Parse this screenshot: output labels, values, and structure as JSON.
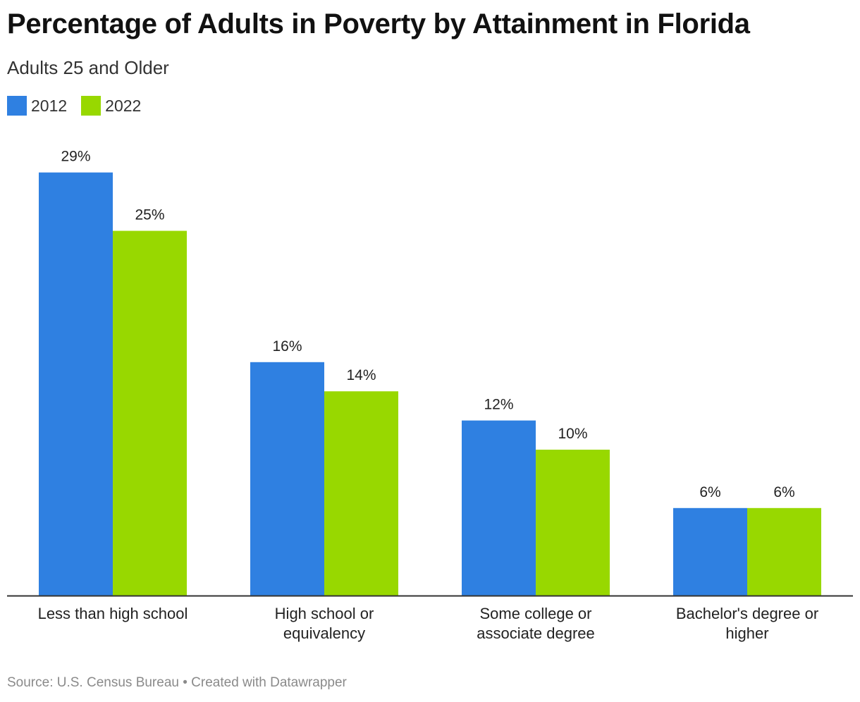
{
  "title": "Percentage of Adults in Poverty by Attainment in Florida",
  "subtitle": "Adults 25 and Older",
  "source": "Source: U.S. Census Bureau • Created with Datawrapper",
  "colors": {
    "2012": "#2f80e1",
    "2022": "#98d800"
  },
  "chart_data": {
    "type": "bar",
    "title": "Percentage of Adults in Poverty by Attainment in Florida",
    "subtitle": "Adults 25 and Older",
    "categories": [
      [
        "Less than high school"
      ],
      [
        "High school or",
        "equivalency"
      ],
      [
        "Some college or",
        "associate degree"
      ],
      [
        "Bachelor's degree or",
        "higher"
      ]
    ],
    "series": [
      {
        "name": "2012",
        "color": "#2f80e1",
        "values": [
          29,
          16,
          12,
          6
        ],
        "labels": [
          "29%",
          "16%",
          "12%",
          "6%"
        ]
      },
      {
        "name": "2022",
        "color": "#98d800",
        "values": [
          25,
          14,
          10,
          6
        ],
        "labels": [
          "25%",
          "14%",
          "10%",
          "6%"
        ]
      }
    ],
    "ylim": [
      0,
      30
    ],
    "grid": false,
    "legend": "top-left"
  }
}
